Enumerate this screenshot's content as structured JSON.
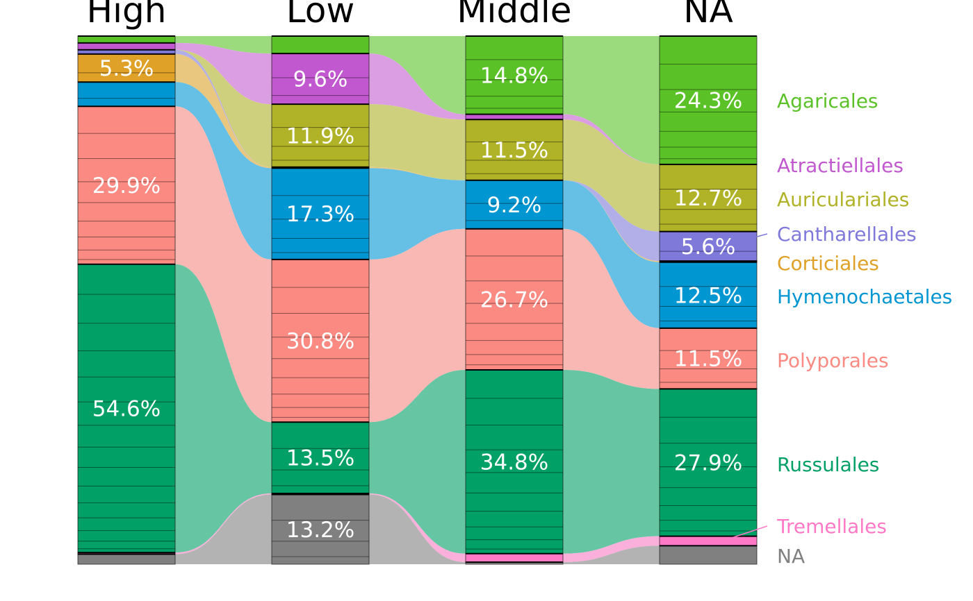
{
  "chart_data": {
    "type": "alluvial",
    "title": "",
    "xlabel": "",
    "ylabel": "",
    "axes": [
      "High",
      "Low",
      "Middle",
      "NA"
    ],
    "categories": [
      "Agaricales",
      "Atractiellales",
      "Auriculariales",
      "Cantharellales",
      "Corticiales",
      "Hymenochaetales",
      "Polyporales",
      "Russulales",
      "Tremellales",
      "NA"
    ],
    "colors": {
      "Agaricales": "#5ac227",
      "Atractiellales": "#c258cf",
      "Auriculariales": "#b0b227",
      "Cantharellales": "#7f79da",
      "Corticiales": "#dfa128",
      "Hymenochaetales": "#0096d2",
      "Polyporales": "#fa8a82",
      "Russulales": "#00a066",
      "Tremellales": "#ff79c7",
      "NA": "#808080"
    },
    "flow_colors": {
      "Agaricales": "#9bdb7d",
      "Atractiellales": "#dc9ee3",
      "Auriculariales": "#cfd07e",
      "Cantharellales": "#b2aee8",
      "Corticiales": "#e9c77e",
      "Hymenochaetales": "#66bfe4",
      "Polyporales": "#f9b8b4",
      "Russulales": "#66c6a3",
      "Tremellales": "#fbafdb",
      "NA": "#b3b3b3"
    },
    "series": [
      {
        "name": "High",
        "values": [
          1.3,
          1.3,
          0.0,
          0.8,
          5.3,
          4.6,
          29.9,
          54.6,
          0.3,
          1.9
        ]
      },
      {
        "name": "Low",
        "values": [
          3.3,
          9.6,
          11.9,
          0.0,
          0.2,
          17.3,
          30.8,
          13.5,
          0.2,
          13.2
        ]
      },
      {
        "name": "Middle",
        "values": [
          14.8,
          1.0,
          11.5,
          0.0,
          0.0,
          9.2,
          26.7,
          34.8,
          1.6,
          0.4
        ]
      },
      {
        "name": "NA",
        "values": [
          24.3,
          0.0,
          12.7,
          5.6,
          0.2,
          12.5,
          11.5,
          27.9,
          1.8,
          3.5
        ]
      }
    ],
    "value_labels": [
      {
        "axis": "High",
        "category": "Corticiales",
        "text": "5.3%"
      },
      {
        "axis": "High",
        "category": "Polyporales",
        "text": "29.9%"
      },
      {
        "axis": "High",
        "category": "Russulales",
        "text": "54.6%"
      },
      {
        "axis": "Low",
        "category": "Atractiellales",
        "text": "9.6%"
      },
      {
        "axis": "Low",
        "category": "Auriculariales",
        "text": "11.9%"
      },
      {
        "axis": "Low",
        "category": "Hymenochaetales",
        "text": "17.3%"
      },
      {
        "axis": "Low",
        "category": "Polyporales",
        "text": "30.8%"
      },
      {
        "axis": "Low",
        "category": "Russulales",
        "text": "13.5%"
      },
      {
        "axis": "Low",
        "category": "NA",
        "text": "13.2%"
      },
      {
        "axis": "Middle",
        "category": "Agaricales",
        "text": "14.8%"
      },
      {
        "axis": "Middle",
        "category": "Auriculariales",
        "text": "11.5%"
      },
      {
        "axis": "Middle",
        "category": "Hymenochaetales",
        "text": "9.2%"
      },
      {
        "axis": "Middle",
        "category": "Polyporales",
        "text": "26.7%"
      },
      {
        "axis": "Middle",
        "category": "Russulales",
        "text": "34.8%"
      },
      {
        "axis": "NA",
        "category": "Agaricales",
        "text": "24.3%"
      },
      {
        "axis": "NA",
        "category": "Auriculariales",
        "text": "12.7%"
      },
      {
        "axis": "NA",
        "category": "Cantharellales",
        "text": "5.6%"
      },
      {
        "axis": "NA",
        "category": "Hymenochaetales",
        "text": "12.5%"
      },
      {
        "axis": "NA",
        "category": "Polyporales",
        "text": "11.5%"
      },
      {
        "axis": "NA",
        "category": "Russulales",
        "text": "27.9%"
      }
    ],
    "legend": {
      "placement": "right",
      "entries": [
        "Agaricales",
        "Atractiellales",
        "Auriculariales",
        "Cantharellales",
        "Corticiales",
        "Hymenochaetales",
        "Polyporales",
        "Russulales",
        "Tremellales",
        "NA"
      ]
    },
    "grid": false
  }
}
